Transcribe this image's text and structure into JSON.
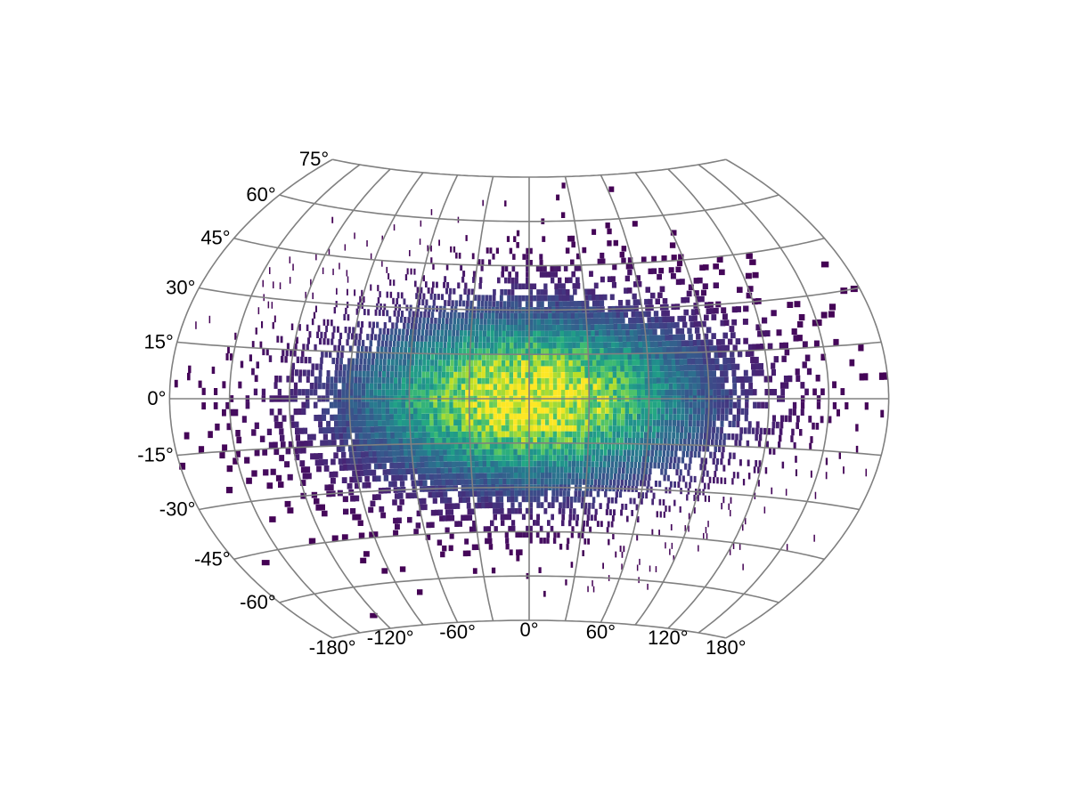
{
  "chart_data": {
    "type": "heatmap",
    "projection": "Winkel Tripel-like pseudo-cylindrical world projection",
    "title": "",
    "xlabel": "",
    "ylabel": "",
    "lon_range": [
      -180,
      180
    ],
    "lat_range": [
      -75,
      75
    ],
    "grid": true,
    "colormap": "viridis",
    "colors": {
      "low": "#440154",
      "mid_low": "#3b528b",
      "mid": "#21918c",
      "mid_high": "#5ec962",
      "high": "#fde725",
      "gridline": "#808080"
    },
    "distribution": {
      "description_of_density": "2D Gaussian point density centered at lon 0, lat 0",
      "center_lon": 0,
      "center_lat": 0,
      "sigma_lon": 60,
      "sigma_lat": 20,
      "peak_relative_density": 1.0
    },
    "bin_size_deg": 2,
    "lat_ticks": [
      {
        "value": 75,
        "label": "75°"
      },
      {
        "value": 60,
        "label": "60°"
      },
      {
        "value": 45,
        "label": "45°"
      },
      {
        "value": 30,
        "label": "30°"
      },
      {
        "value": 15,
        "label": "15°"
      },
      {
        "value": 0,
        "label": "0°"
      },
      {
        "value": -15,
        "label": "-15°"
      },
      {
        "value": -30,
        "label": "-30°"
      },
      {
        "value": -45,
        "label": "-45°"
      },
      {
        "value": -60,
        "label": "-60°"
      }
    ],
    "lon_ticks": [
      {
        "value": -180,
        "label": "-180°"
      },
      {
        "value": -120,
        "label": "-120°"
      },
      {
        "value": -60,
        "label": "-60°"
      },
      {
        "value": 0,
        "label": "0°"
      },
      {
        "value": 60,
        "label": "60°"
      },
      {
        "value": 120,
        "label": "120°"
      },
      {
        "value": 180,
        "label": "180°"
      }
    ]
  }
}
